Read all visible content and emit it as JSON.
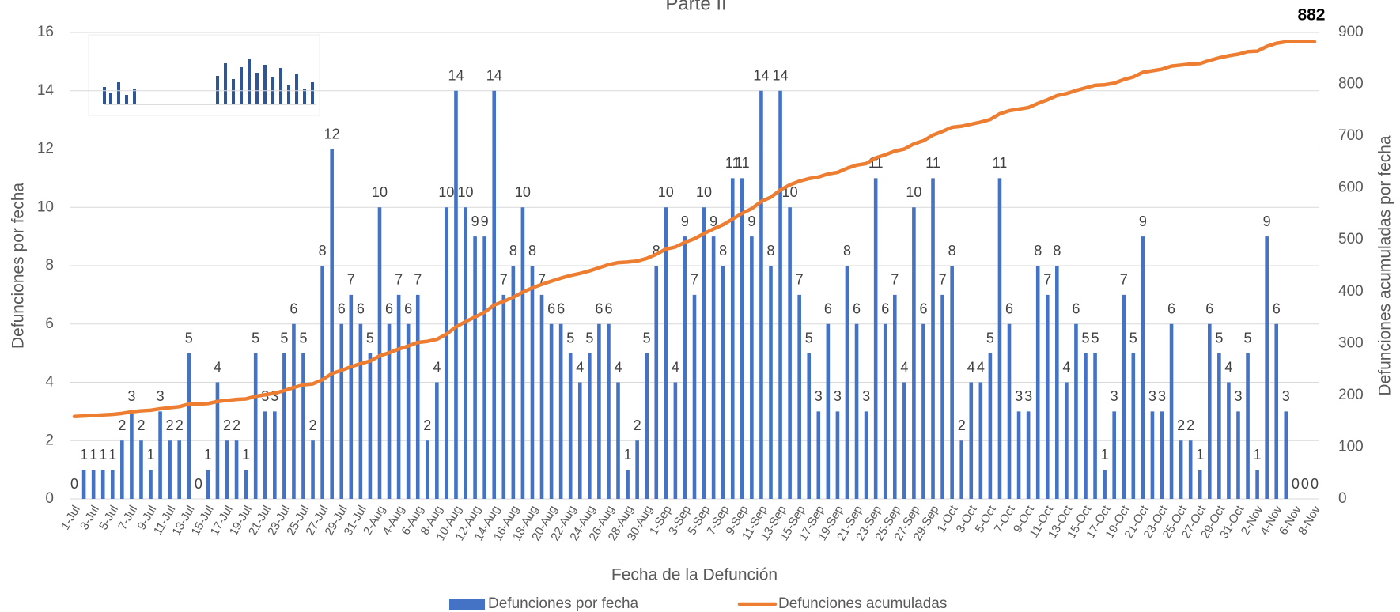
{
  "chart_data": {
    "type": "bar",
    "title": "Parte II",
    "x_label": "Fecha de la Defunción",
    "y_label": "Defunciones por fecha",
    "y2_label": "Defunciones acumuladas por fecha",
    "categories": [
      "1-Jul",
      null,
      "3-Jul",
      null,
      "5-Jul",
      null,
      "7-Jul",
      null,
      "9-Jul",
      null,
      "11-Jul",
      null,
      "13-Jul",
      null,
      "15-Jul",
      null,
      "17-Jul",
      null,
      "19-Jul",
      null,
      "21-Jul",
      null,
      "23-Jul",
      null,
      "25-Jul",
      null,
      "27-Jul",
      null,
      "29-Jul",
      null,
      "31-Jul",
      null,
      "2-Aug",
      null,
      "4-Aug",
      null,
      "6-Aug",
      null,
      "8-Aug",
      null,
      "10-Aug",
      null,
      "12-Aug",
      null,
      "14-Aug",
      null,
      "16-Aug",
      null,
      "18-Aug",
      null,
      "20-Aug",
      null,
      "22-Aug",
      null,
      "24-Aug",
      null,
      "26-Aug",
      null,
      "28-Aug",
      null,
      "30-Aug",
      null,
      "1-Sep",
      null,
      "3-Sep",
      null,
      "5-Sep",
      null,
      "7-Sep",
      null,
      "9-Sep",
      null,
      "11-Sep",
      null,
      "13-Sep",
      null,
      "15-Sep",
      null,
      "17-Sep",
      null,
      "19-Sep",
      null,
      "21-Sep",
      null,
      "23-Sep",
      null,
      "25-Sep",
      null,
      "27-Sep",
      null,
      "29-Sep",
      null,
      "1-Oct",
      null,
      "3-Oct",
      null,
      "5-Oct",
      null,
      "7-Oct",
      null,
      "9-Oct",
      null,
      "11-Oct",
      null,
      "13-Oct",
      null,
      "15-Oct",
      null,
      "17-Oct",
      null,
      "19-Oct",
      null,
      "21-Oct",
      null,
      "23-Oct",
      null,
      "25-Oct",
      null,
      "27-Oct",
      null,
      "29-Oct",
      null,
      "31-Oct",
      null,
      "2-Nov",
      null,
      "4-Nov",
      null,
      "6-Nov",
      null,
      "8-Nov"
    ],
    "series": [
      {
        "name": "Defunciones por fecha",
        "type": "bar",
        "color": "#4472c4",
        "labels": "all",
        "values": [
          0,
          1,
          1,
          1,
          1,
          2,
          3,
          2,
          1,
          3,
          2,
          2,
          5,
          0,
          1,
          4,
          2,
          2,
          1,
          5,
          3,
          3,
          5,
          6,
          5,
          2,
          8,
          12,
          6,
          7,
          6,
          5,
          10,
          6,
          7,
          6,
          7,
          2,
          4,
          10,
          14,
          10,
          9,
          9,
          14,
          7,
          8,
          10,
          8,
          7,
          6,
          6,
          5,
          4,
          5,
          6,
          6,
          4,
          1,
          2,
          5,
          8,
          10,
          4,
          9,
          7,
          10,
          9,
          8,
          11,
          11,
          9,
          14,
          8,
          14,
          10,
          7,
          5,
          3,
          6,
          3,
          8,
          6,
          3,
          11,
          6,
          7,
          4,
          10,
          6,
          11,
          7,
          8,
          2,
          4,
          4,
          5,
          11,
          6,
          3,
          3,
          8,
          7,
          8,
          4,
          6,
          5,
          5,
          1,
          3,
          7,
          5,
          9,
          3,
          3,
          6,
          2,
          2,
          1,
          6,
          5,
          4,
          3,
          5,
          1,
          9,
          6,
          3,
          0,
          0,
          0
        ]
      },
      {
        "name": "Defunciones acumuladas",
        "type": "line",
        "axis": "y2",
        "color": "#ed7d31",
        "labels": "last",
        "values": [
          159,
          160,
          161,
          162,
          163,
          165,
          168,
          170,
          171,
          174,
          176,
          178,
          183,
          183,
          184,
          188,
          190,
          192,
          193,
          198,
          201,
          204,
          209,
          215,
          220,
          222,
          230,
          242,
          248,
          255,
          261,
          266,
          276,
          282,
          289,
          295,
          302,
          304,
          308,
          318,
          332,
          342,
          351,
          360,
          374,
          381,
          389,
          399,
          407,
          414,
          420,
          426,
          431,
          435,
          440,
          446,
          452,
          456,
          457,
          459,
          464,
          472,
          482,
          486,
          495,
          502,
          512,
          521,
          529,
          540,
          551,
          560,
          574,
          582,
          596,
          606,
          613,
          618,
          621,
          627,
          630,
          638,
          644,
          647,
          658,
          664,
          671,
          675,
          685,
          691,
          702,
          709,
          717,
          719,
          723,
          727,
          732,
          743,
          749,
          752,
          755,
          763,
          770,
          778,
          782,
          788,
          793,
          798,
          799,
          802,
          809,
          814,
          823,
          826,
          829,
          835,
          837,
          839,
          840,
          846,
          851,
          855,
          858,
          863,
          864,
          873,
          879,
          882,
          882,
          882,
          882
        ]
      }
    ],
    "ylim": [
      0,
      16
    ],
    "yticks": [
      0,
      2,
      4,
      6,
      8,
      10,
      12,
      14,
      16
    ],
    "y2lim": [
      0,
      900
    ],
    "y2ticks": [
      0,
      100,
      200,
      300,
      400,
      500,
      600,
      700,
      800,
      900
    ],
    "grid": true,
    "legend": "bottom"
  }
}
